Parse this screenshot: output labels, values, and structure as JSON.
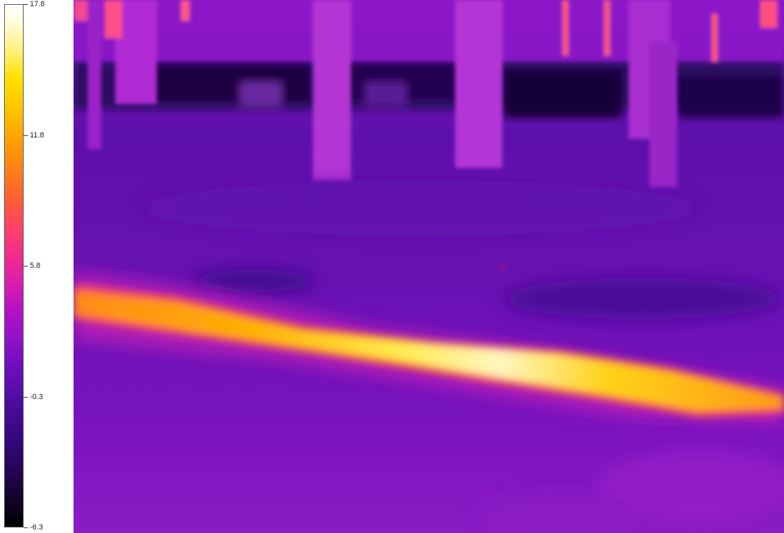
{
  "scale": {
    "max_label": "17.8",
    "tick_labels": [
      "17.8",
      "11.8",
      "5.8",
      "-0.3",
      "-6.3"
    ],
    "min_label": "-6.3",
    "palette": "iron",
    "colors": {
      "hot": "#ffffff",
      "warm": "#ffd000",
      "mid": "#ff4080",
      "cool": "#9a12c6",
      "cold": "#000000"
    }
  },
  "image": {
    "icon": "thermal-scene",
    "crosshair_icon": "crosshair-icon",
    "crosshair_color": "#e0203a"
  }
}
